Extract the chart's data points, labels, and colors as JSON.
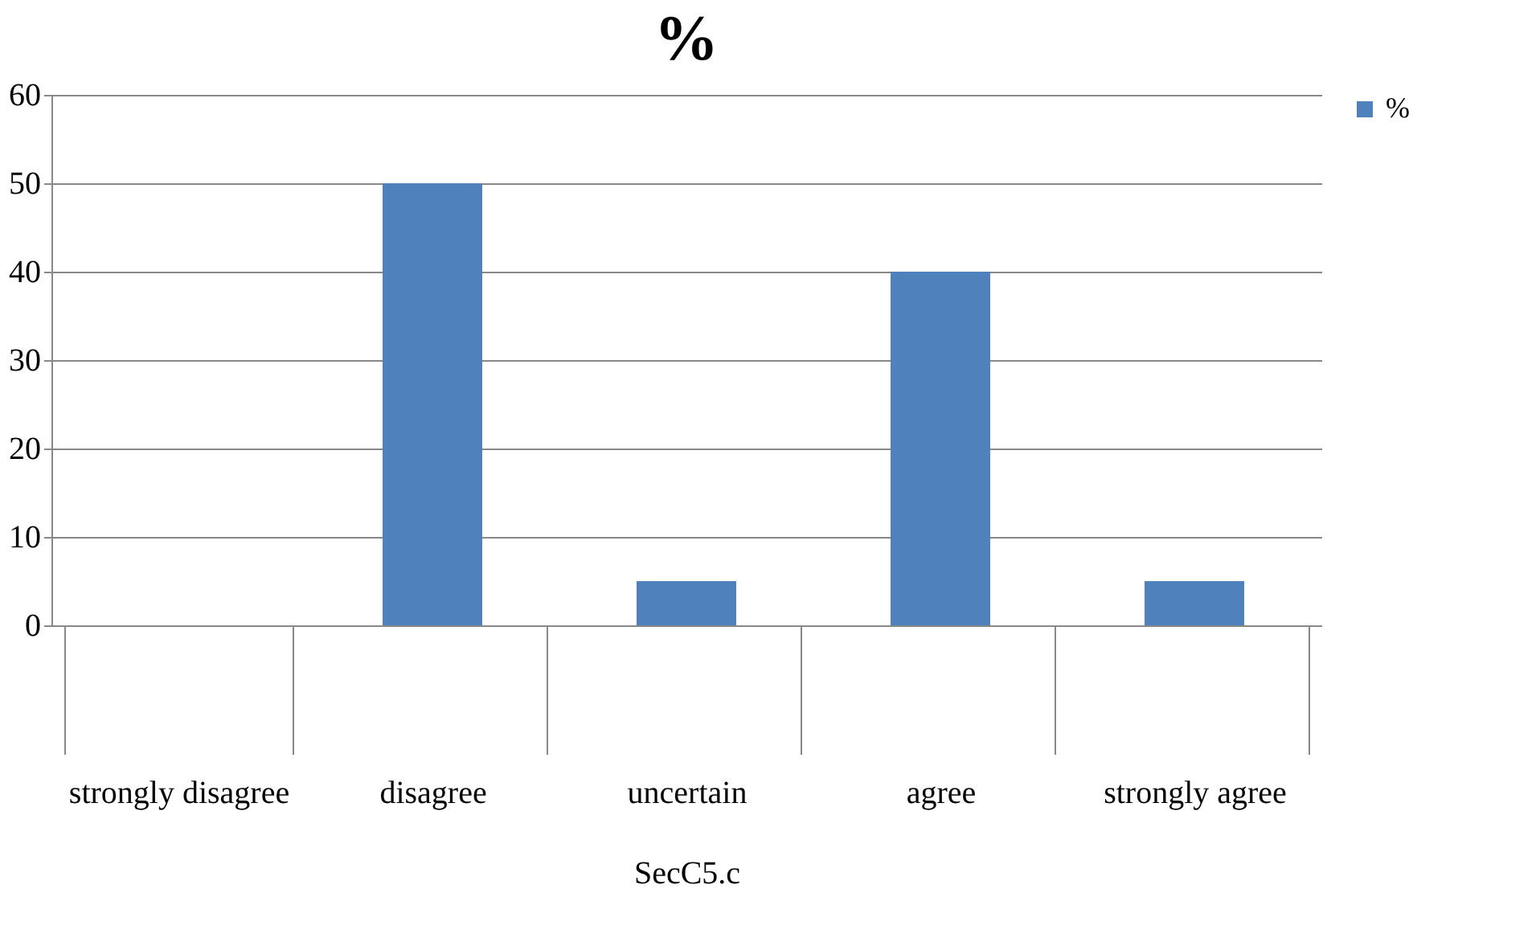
{
  "chart_data": {
    "type": "bar",
    "title": "%",
    "xlabel": "SecC5.c",
    "categories": [
      "strongly disagree",
      "disagree",
      "uncertain",
      "agree",
      "strongly agree"
    ],
    "series": [
      {
        "name": "%",
        "color": "#4f81bd",
        "values": [
          0,
          50,
          5,
          40,
          5
        ]
      }
    ],
    "ylim": [
      0,
      60
    ],
    "yticks": [
      0,
      10,
      20,
      30,
      40,
      50,
      60
    ],
    "grid": "y",
    "legend": "right"
  }
}
